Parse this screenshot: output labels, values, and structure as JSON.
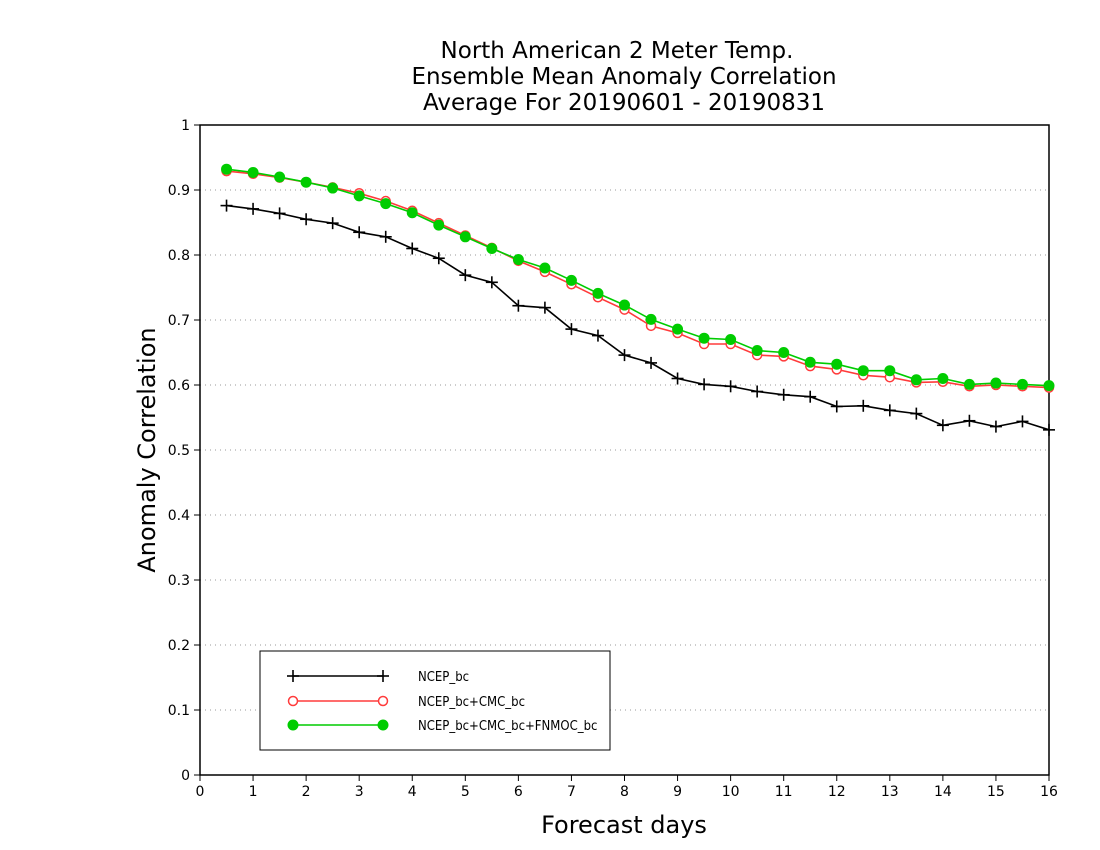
{
  "chart_data": {
    "type": "line",
    "title_lines": [
      "North American 2 Meter Temp.",
      "Ensemble Mean Anomaly Correlation",
      "Average For 20190601 - 20190831"
    ],
    "xlabel": "Forecast days",
    "ylabel": "Anomaly Correlation",
    "xlim": [
      0,
      16
    ],
    "ylim": [
      0,
      1
    ],
    "xticks": [
      0,
      1,
      2,
      3,
      4,
      5,
      6,
      7,
      8,
      9,
      10,
      11,
      12,
      13,
      14,
      15,
      16
    ],
    "yticks": [
      0,
      0.1,
      0.2,
      0.3,
      0.4,
      0.5,
      0.6,
      0.7,
      0.8,
      0.9,
      1
    ],
    "ytick_labels": [
      "0",
      "0.1",
      "0.2",
      "0.3",
      "0.4",
      "0.5",
      "0.6",
      "0.7",
      "0.8",
      "0.9",
      "1"
    ],
    "grid": "horizontal dotted",
    "legend_position": "bottom-left",
    "x": [
      0.5,
      1,
      1.5,
      2,
      2.5,
      3,
      3.5,
      4,
      4.5,
      5,
      5.5,
      6,
      6.5,
      7,
      7.5,
      8,
      8.5,
      9,
      9.5,
      10,
      10.5,
      11,
      11.5,
      12,
      12.5,
      13,
      13.5,
      14,
      14.5,
      15,
      15.5,
      16
    ],
    "series": [
      {
        "name": "NCEP_bc",
        "color": "#000000",
        "marker": "plus",
        "values": [
          0.876,
          0.871,
          0.864,
          0.855,
          0.849,
          0.835,
          0.828,
          0.81,
          0.795,
          0.769,
          0.758,
          0.722,
          0.719,
          0.686,
          0.676,
          0.646,
          0.634,
          0.61,
          0.601,
          0.598,
          0.59,
          0.585,
          0.582,
          0.567,
          0.568,
          0.561,
          0.556,
          0.538,
          0.545,
          0.536,
          0.544,
          0.531
        ]
      },
      {
        "name": "NCEP_bc+CMC_bc",
        "color": "#ff3b3b",
        "marker": "open-circle",
        "values": [
          0.929,
          0.925,
          0.919,
          0.912,
          0.904,
          0.895,
          0.883,
          0.868,
          0.849,
          0.83,
          0.811,
          0.791,
          0.774,
          0.755,
          0.735,
          0.716,
          0.691,
          0.68,
          0.663,
          0.663,
          0.646,
          0.644,
          0.629,
          0.624,
          0.615,
          0.612,
          0.604,
          0.605,
          0.598,
          0.6,
          0.598,
          0.596
        ]
      },
      {
        "name": "NCEP_bc+CMC_bc+FNMOC_bc",
        "color": "#00cc00",
        "marker": "filled-circle",
        "values": [
          0.932,
          0.927,
          0.92,
          0.912,
          0.903,
          0.891,
          0.879,
          0.865,
          0.846,
          0.828,
          0.81,
          0.793,
          0.78,
          0.761,
          0.741,
          0.723,
          0.701,
          0.686,
          0.672,
          0.67,
          0.653,
          0.65,
          0.635,
          0.632,
          0.622,
          0.622,
          0.608,
          0.61,
          0.601,
          0.603,
          0.601,
          0.599
        ]
      }
    ]
  }
}
